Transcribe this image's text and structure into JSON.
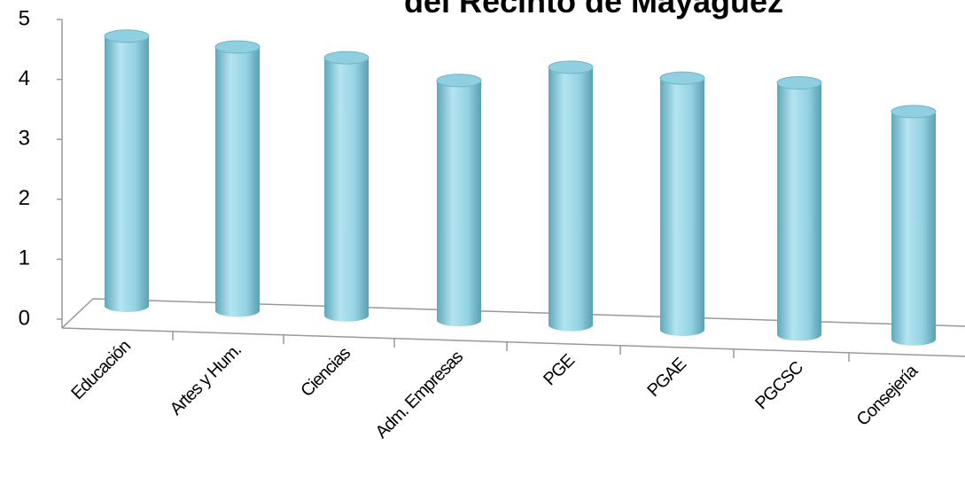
{
  "chart_data": {
    "type": "bar",
    "title": "del Recinto de Mayagüez",
    "categories": [
      "Educación",
      "Artes y Hum.",
      "Ciencias",
      "Adm. Empresas",
      "PGE",
      "PGAE",
      "PGCSC",
      "Consejería"
    ],
    "values": [
      4.5,
      4.4,
      4.3,
      4.0,
      4.3,
      4.2,
      4.2,
      3.8
    ],
    "color": "#92d0e0",
    "ylim": [
      0,
      5
    ],
    "yticks": [
      0,
      1,
      2,
      3,
      4,
      5
    ]
  }
}
